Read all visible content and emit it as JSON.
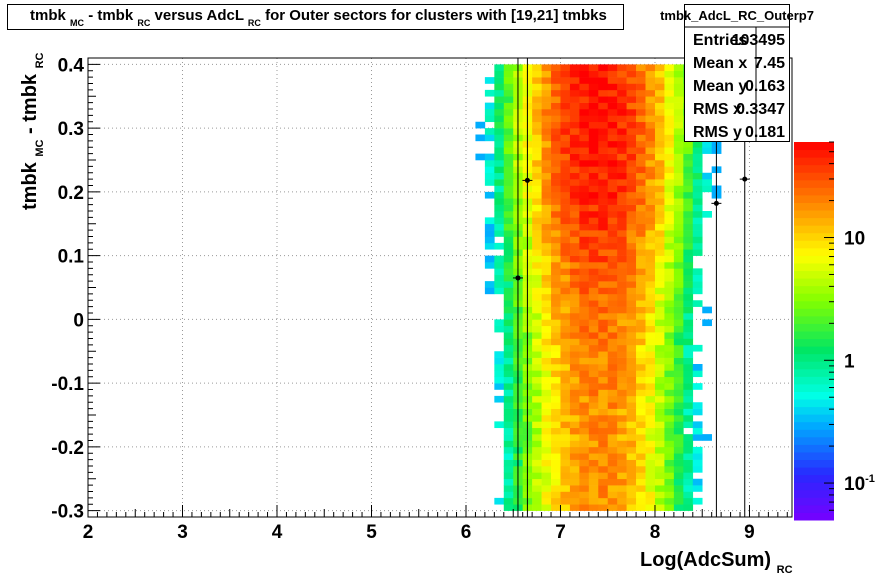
{
  "chart_data": {
    "type": "heatmap",
    "title": "tmbk_MC - tmbk_RC versus AdcL_RC for Outer sectors for clusters with [19,21] tmbks",
    "title_parts": {
      "t1": "tmbk",
      "s1": "MC",
      "t2": " - tmbk",
      "s2": "RC",
      "t3": " versus AdcL",
      "s3": "RC",
      "t4": " for Outer sectors for clusters with [19,21] tmbks"
    },
    "xlabel": "Log(AdcSum)",
    "xlabel_sub": "RC",
    "ylabel": "tmbk",
    "ylabel_sub1": "MC",
    "ylabel_mid": " - tmbk",
    "ylabel_sub2": "RC",
    "xlim": [
      2,
      9.45
    ],
    "ylim": [
      -0.31,
      0.41
    ],
    "x_ticks": [
      2,
      3,
      4,
      5,
      6,
      7,
      8,
      9
    ],
    "x_tick_labels": [
      "2",
      "3",
      "4",
      "5",
      "6",
      "7",
      "8",
      "9"
    ],
    "y_ticks": [
      -0.3,
      -0.2,
      -0.1,
      0,
      0.1,
      0.2,
      0.3,
      0.4
    ],
    "y_tick_labels": [
      "-0.3",
      "-0.2",
      "-0.1",
      "0",
      "0.1",
      "0.2",
      "0.3",
      "0.4"
    ],
    "grid": true,
    "colorbar": {
      "scale": "log",
      "range": [
        0.05,
        60
      ],
      "tick_labels": [
        {
          "value": 0.1,
          "label": "10",
          "sup": "-1"
        },
        {
          "value": 1,
          "label": "1",
          "sup": ""
        },
        {
          "value": 10,
          "label": "10",
          "sup": ""
        }
      ]
    },
    "heatmap": {
      "x_bin_width": 0.1,
      "y_bin_width": 0.01,
      "x_range": [
        6.0,
        9.0
      ],
      "y_range": [
        -0.3,
        0.4
      ],
      "peak_x": 7.4,
      "peak_y": 0.3
    },
    "profile_points": [
      {
        "x": 6.55,
        "y": 0.065,
        "y_low": -0.31,
        "y_high": 0.41
      },
      {
        "x": 6.65,
        "y": 0.218,
        "y_low": -0.31,
        "y_high": 0.41
      },
      {
        "x": 8.65,
        "y": 0.182,
        "y_low": -0.31,
        "y_high": 0.41
      },
      {
        "x": 8.95,
        "y": 0.22,
        "y_low": -0.31,
        "y_high": 0.41
      }
    ],
    "stats": {
      "name": "tmbk_AdcL_RC_Outerp7",
      "rows": [
        {
          "label": "Entries",
          "value": "103495"
        },
        {
          "label": "Mean x",
          "value": "7.45"
        },
        {
          "label": "Mean y",
          "value": "0.163"
        },
        {
          "label": "RMS x",
          "value": "0.3347"
        },
        {
          "label": "RMS y",
          "value": "0.181"
        }
      ]
    }
  }
}
